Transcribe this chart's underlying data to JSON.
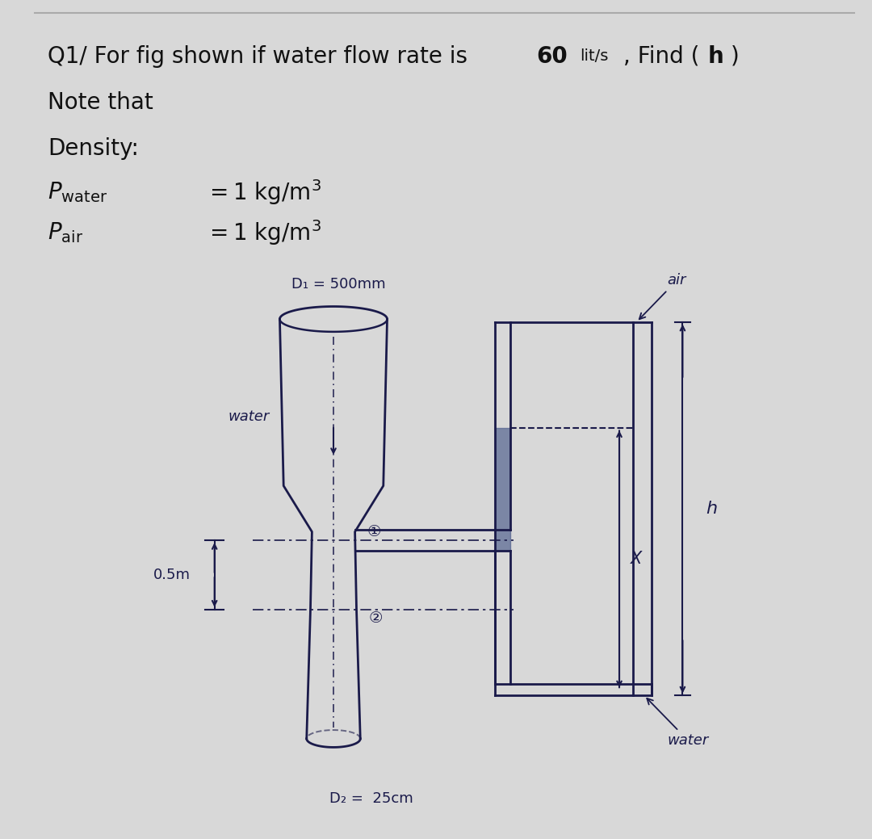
{
  "bg_white": "#ffffff",
  "bg_diagram": "#c8c5be",
  "line_color": "#1a1a4a",
  "water_fill": "#4a5a8a",
  "title_text": "Q1/ For fig shown if water flow rate is ",
  "title_bold": "60",
  "title_units": "lit/s",
  "title_end": " , Find (",
  "title_h": "h",
  "title_close": ")",
  "note_text": "Note that",
  "density_text": "Density:",
  "p_water": "$P_{\\mathrm{water}} = 1\\ \\mathrm{kg/m}^3$",
  "p_air": "$P_{\\mathrm{air}} = 1\\ \\mathrm{kg/m}^3$",
  "D1_text": "D₁ = 500mm",
  "D2_text": "D₂ =  25cm",
  "water_in": "water",
  "air_text": "air",
  "water_out": "water",
  "x_text": "X",
  "h_text": "h",
  "dim_text": "0.5m"
}
